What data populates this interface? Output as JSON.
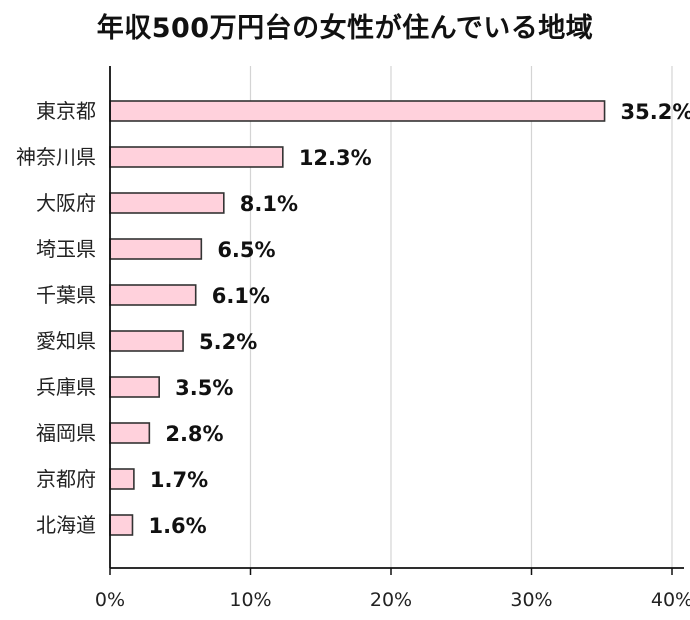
{
  "chart_data": {
    "type": "bar",
    "orientation": "horizontal",
    "title": "年収500万円台の女性が住んでいる地域",
    "categories": [
      "東京都",
      "神奈川県",
      "大阪府",
      "埼玉県",
      "千葉県",
      "愛知県",
      "兵庫県",
      "福岡県",
      "京都府",
      "北海道"
    ],
    "values": [
      35.2,
      12.3,
      8.1,
      6.5,
      6.1,
      5.2,
      3.5,
      2.8,
      1.7,
      1.6
    ],
    "value_labels": [
      "35.2%",
      "12.3%",
      "8.1%",
      "6.5%",
      "6.1%",
      "5.2%",
      "3.5%",
      "2.8%",
      "1.7%",
      "1.6%"
    ],
    "xlim": [
      0,
      40
    ],
    "xticks": [
      0,
      10,
      20,
      30,
      40
    ],
    "xtick_labels": [
      "0%",
      "10%",
      "20%",
      "30%",
      "40%"
    ],
    "grid": "vertical",
    "legend": "none",
    "bar_color": "#ffd1dc",
    "bar_edge_color": "#333333"
  }
}
